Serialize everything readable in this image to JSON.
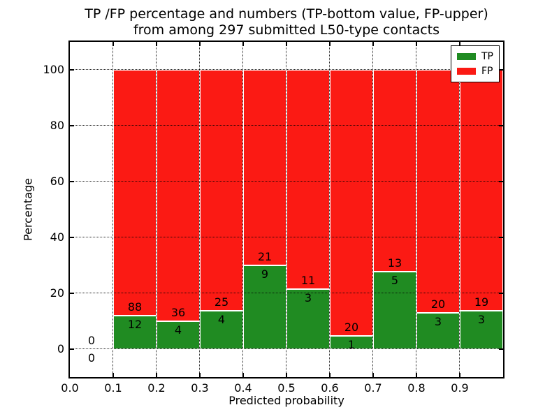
{
  "title_lines": [
    "TP /FP percentage and numbers (TP-bottom value, FP-upper)",
    "from among 297 submitted L50-type contacts"
  ],
  "legend": {
    "items": [
      {
        "label": "TP"
      },
      {
        "label": "FP"
      }
    ],
    "position": "upper right"
  },
  "colors": {
    "tp": "#208b22",
    "fp": "#fb1a14",
    "grid": "#000000",
    "spine": "#000000",
    "background": "#ffffff"
  },
  "chart_data": {
    "type": "bar",
    "stacked": true,
    "normalized": "each bin scaled to 100%",
    "title": "TP /FP percentage and numbers (TP-bottom value, FP-upper) from among 297 submitted L50-type contacts",
    "xlabel": "Predicted probability",
    "ylabel": "Percentage",
    "total_contacts": 297,
    "bin_width": 0.1,
    "bin_start": [
      0.0,
      0.1,
      0.2,
      0.3,
      0.4,
      0.5,
      0.6,
      0.7,
      0.8,
      0.9
    ],
    "series": [
      {
        "name": "TP",
        "counts": [
          0,
          12,
          4,
          4,
          9,
          3,
          1,
          5,
          3,
          3
        ]
      },
      {
        "name": "FP",
        "counts": [
          0,
          88,
          36,
          25,
          21,
          11,
          20,
          13,
          20,
          19
        ]
      }
    ],
    "tp_percent_per_bin": [
      0,
      12.0,
      10.0,
      13.8,
      30.0,
      21.4,
      4.8,
      27.8,
      13.0,
      13.6
    ],
    "xlim": [
      0.0,
      1.0
    ],
    "ylim": [
      -10,
      110
    ],
    "x_ticks": [
      0.0,
      0.1,
      0.2,
      0.3,
      0.4,
      0.5,
      0.6,
      0.7,
      0.8,
      0.9
    ],
    "y_ticks": [
      0,
      20,
      40,
      60,
      80,
      100
    ],
    "grid": "dotted",
    "legend_position": "upper right"
  }
}
